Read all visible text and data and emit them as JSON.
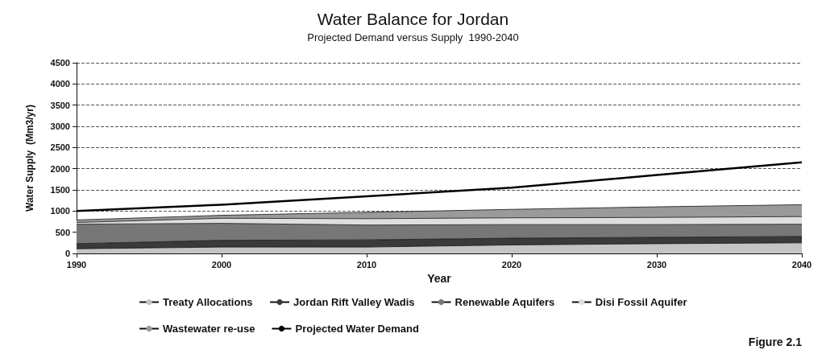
{
  "chart_data": {
    "type": "area",
    "title": "Water Balance for Jordan",
    "subtitle": "Projected Demand versus Supply  1990-2040",
    "xlabel": "Year",
    "ylabel": "Water Supply  (Mm3/yr)",
    "x": [
      1990,
      2000,
      2010,
      2020,
      2030,
      2040
    ],
    "series": [
      {
        "name": "Treaty Allocations",
        "color": "#c4c4c4",
        "values": [
          110,
          150,
          150,
          200,
          230,
          250
        ]
      },
      {
        "name": "Jordan Rift Valley Wadis",
        "color": "#3a3a3a",
        "values": [
          120,
          160,
          170,
          160,
          150,
          150
        ]
      },
      {
        "name": "Renewable Aquifers",
        "color": "#777777",
        "values": [
          460,
          400,
          350,
          320,
          300,
          290
        ]
      },
      {
        "name": "Disi Fossil Aquifer",
        "color": "#dedede",
        "values": [
          40,
          120,
          150,
          160,
          170,
          180
        ]
      },
      {
        "name": "Wastewater re-use",
        "color": "#9a9a9a",
        "values": [
          60,
          70,
          150,
          200,
          250,
          280
        ]
      },
      {
        "name": "Projected Water Demand",
        "type": "line",
        "color": "#000000",
        "values": [
          1000,
          1150,
          1350,
          1550,
          1850,
          2150
        ]
      }
    ],
    "stacked": true,
    "xlim": [
      1990,
      2040
    ],
    "xticks": [
      1990,
      2000,
      2010,
      2020,
      2030,
      2040
    ],
    "ylim": [
      0,
      4500
    ],
    "yticks": [
      0,
      500,
      1000,
      1500,
      2000,
      2500,
      3000,
      3500,
      4000,
      4500
    ],
    "grid": "y",
    "legend": "bottom",
    "marker": "none",
    "line_style": "solid",
    "annotations": [
      "Figure 2.1"
    ]
  }
}
